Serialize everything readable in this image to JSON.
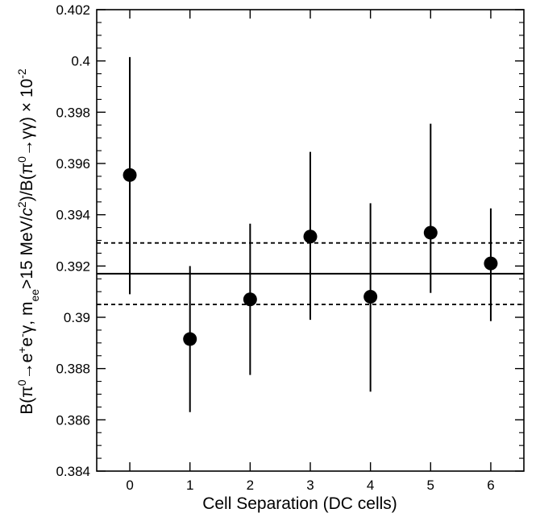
{
  "chart_data": {
    "type": "scatter",
    "title": "",
    "xlabel": "Cell Separation (DC cells)",
    "ylabel": {
      "parts": [
        {
          "t": "B(π"
        },
        {
          "t": "0",
          "s": "sup"
        },
        {
          "t": "→e"
        },
        {
          "t": "+",
          "s": "sup"
        },
        {
          "t": "e"
        },
        {
          "t": "-",
          "s": "sup"
        },
        {
          "t": "γ, m"
        },
        {
          "t": "ee",
          "s": "sub"
        },
        {
          "t": ">15 MeV/"
        },
        {
          "t": "c",
          "s": "ital"
        },
        {
          "t": "2",
          "s": "sup"
        },
        {
          "t": ")/B(π"
        },
        {
          "t": "0",
          "s": "sup"
        },
        {
          "t": "→γγ) × 10"
        },
        {
          "t": "-2",
          "s": "sup"
        }
      ]
    },
    "xlim": [
      -0.55,
      6.55
    ],
    "ylim": [
      0.384,
      0.402
    ],
    "x_ticks": [
      0,
      1,
      2,
      3,
      4,
      5,
      6
    ],
    "x_tick_labels": [
      "0",
      "1",
      "2",
      "3",
      "4",
      "5",
      "6"
    ],
    "y_ticks": [
      0.384,
      0.386,
      0.388,
      0.39,
      0.392,
      0.394,
      0.396,
      0.398,
      0.4,
      0.402
    ],
    "y_tick_labels": [
      "0.384",
      "0.386",
      "0.388",
      "0.39",
      "0.392",
      "0.394",
      "0.396",
      "0.398",
      "0.4",
      "0.402"
    ],
    "grid": false,
    "points": [
      {
        "x": 0,
        "y": 0.39555,
        "err_low": 0.3909,
        "err_high": 0.40015
      },
      {
        "x": 1,
        "y": 0.38915,
        "err_low": 0.3863,
        "err_high": 0.392
      },
      {
        "x": 2,
        "y": 0.3907,
        "err_low": 0.38775,
        "err_high": 0.39365
      },
      {
        "x": 3,
        "y": 0.39315,
        "err_low": 0.3899,
        "err_high": 0.39645
      },
      {
        "x": 4,
        "y": 0.3908,
        "err_low": 0.3871,
        "err_high": 0.39445
      },
      {
        "x": 5,
        "y": 0.3933,
        "err_low": 0.39095,
        "err_high": 0.39755
      },
      {
        "x": 6,
        "y": 0.3921,
        "err_low": 0.38985,
        "err_high": 0.39425
      }
    ],
    "reference_lines": [
      {
        "y": 0.3917,
        "style": "solid"
      },
      {
        "y": 0.3929,
        "style": "dashed"
      },
      {
        "y": 0.3905,
        "style": "dashed"
      }
    ],
    "marker_color": "#000000",
    "line_color": "#000000"
  }
}
